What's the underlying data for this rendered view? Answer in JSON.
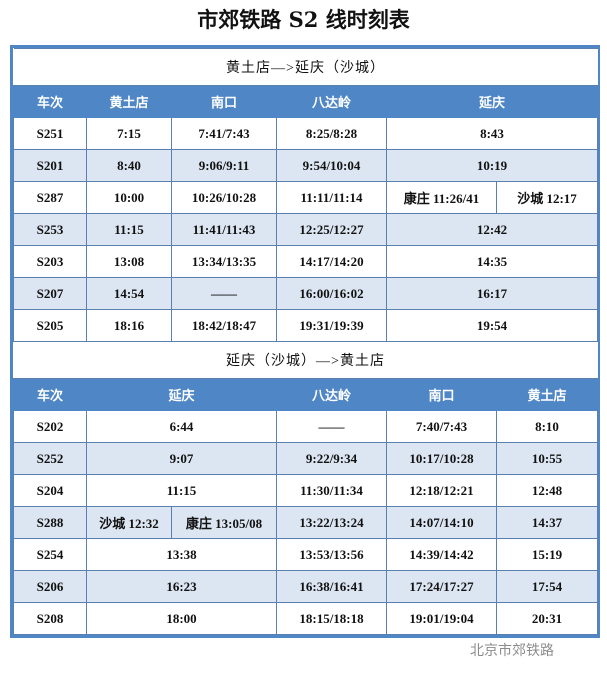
{
  "title": "市郊铁路 S2 线时刻表",
  "watermark": "北京市郊铁路",
  "sections": [
    {
      "heading": "黄土店—>延庆（沙城）",
      "cols": [
        73,
        85,
        108,
        112,
        206
      ],
      "headers": [
        {
          "t": "车次",
          "span": 1
        },
        {
          "t": "黄土店",
          "span": 1
        },
        {
          "t": "南口",
          "span": 1
        },
        {
          "t": "八达岭",
          "span": 1
        },
        {
          "t": "延庆",
          "span": 1
        }
      ],
      "rows": [
        [
          {
            "t": "S251"
          },
          {
            "t": "7:15"
          },
          {
            "t": "7:41/7:43"
          },
          {
            "t": "8:25/8:28"
          },
          {
            "t": "8:43"
          }
        ],
        [
          {
            "t": "S201"
          },
          {
            "t": "8:40"
          },
          {
            "t": "9:06/9:11"
          },
          {
            "t": "9:54/10:04"
          },
          {
            "t": "10:19"
          }
        ],
        [
          {
            "t": "S287"
          },
          {
            "t": "10:00"
          },
          {
            "t": "10:26/10:28"
          },
          {
            "t": "11:11/11:14"
          },
          {
            "t": "康庄 11:26/41",
            "split": 1
          },
          {
            "t": "沙城 12:17",
            "split": 2
          }
        ],
        [
          {
            "t": "S253"
          },
          {
            "t": "11:15"
          },
          {
            "t": "11:41/11:43"
          },
          {
            "t": "12:25/12:27"
          },
          {
            "t": "12:42"
          }
        ],
        [
          {
            "t": "S203"
          },
          {
            "t": "13:08"
          },
          {
            "t": "13:34/13:35"
          },
          {
            "t": "14:17/14:20"
          },
          {
            "t": "14:35"
          }
        ],
        [
          {
            "t": "S207"
          },
          {
            "t": "14:54"
          },
          {
            "t": "——"
          },
          {
            "t": "16:00/16:02"
          },
          {
            "t": "16:17"
          }
        ],
        [
          {
            "t": "S205"
          },
          {
            "t": "18:16"
          },
          {
            "t": "18:42/18:47"
          },
          {
            "t": "19:31/19:39"
          },
          {
            "t": "19:54"
          }
        ]
      ]
    },
    {
      "heading": "延庆（沙城）—>黄土店",
      "cols": [
        73,
        217,
        111,
        107,
        76
      ],
      "headers": [
        {
          "t": "车次"
        },
        {
          "t": "延庆"
        },
        {
          "t": "八达岭"
        },
        {
          "t": "南口"
        },
        {
          "t": "黄土店"
        }
      ],
      "rows": [
        [
          {
            "t": "S202"
          },
          {
            "t": "6:44"
          },
          {
            "t": "——"
          },
          {
            "t": "7:40/7:43"
          },
          {
            "t": "8:10"
          }
        ],
        [
          {
            "t": "S252"
          },
          {
            "t": "9:07"
          },
          {
            "t": "9:22/9:34"
          },
          {
            "t": "10:17/10:28"
          },
          {
            "t": "10:55"
          }
        ],
        [
          {
            "t": "S204"
          },
          {
            "t": "11:15"
          },
          {
            "t": "11:30/11:34"
          },
          {
            "t": "12:18/12:21"
          },
          {
            "t": "12:48"
          }
        ],
        [
          {
            "t": "S288"
          },
          {
            "t": "沙城 12:32",
            "split": 1
          },
          {
            "t": "康庄 13:05/08",
            "split": 2
          },
          {
            "t": "13:22/13:24"
          },
          {
            "t": "14:07/14:10"
          },
          {
            "t": "14:37"
          }
        ],
        [
          {
            "t": "S254"
          },
          {
            "t": "13:38"
          },
          {
            "t": "13:53/13:56"
          },
          {
            "t": "14:39/14:42"
          },
          {
            "t": "15:19"
          }
        ],
        [
          {
            "t": "S206"
          },
          {
            "t": "16:23"
          },
          {
            "t": "16:38/16:41"
          },
          {
            "t": "17:24/17:27"
          },
          {
            "t": "17:54"
          }
        ],
        [
          {
            "t": "S208"
          },
          {
            "t": "18:00"
          },
          {
            "t": "18:15/18:18"
          },
          {
            "t": "19:01/19:04"
          },
          {
            "t": "20:31"
          }
        ]
      ]
    }
  ]
}
